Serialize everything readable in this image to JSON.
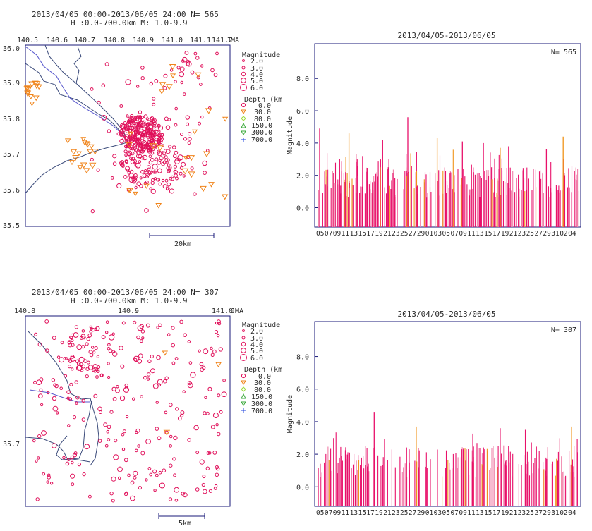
{
  "colors": {
    "axis": "#1a1a7a",
    "text": "#2a2a2a",
    "coast": "#3a4a7a",
    "river": "#5555cc",
    "shallow": "#e0105a",
    "mid": "#f0841a",
    "deep80": "#9adb3a",
    "deep150": "#3aa83a",
    "deep300": "#2244dd",
    "bar_pink": "#e8106a",
    "bar_light": "#f080a8",
    "bar_orange": "#f0941a"
  },
  "panels": [
    {
      "map": {
        "header_line1": "2013/04/05 00:00-2013/06/05 24:00   N=   565",
        "header_line2": "H :0.0-700.0km  M: 1.0-9.9",
        "lon_ticks": [
          "140.5",
          "140.6",
          "140.7",
          "140.8",
          "140.9",
          "141.0",
          "141.1",
          "141.2"
        ],
        "agency": "JMA",
        "lat_ticks": [
          "36.0",
          "35.9",
          "35.8",
          "35.7",
          "35.6",
          "35.5"
        ],
        "scale_label": "20km",
        "legend_mag_title": "Magnitude",
        "legend_mag": [
          "2.0",
          "3.0",
          "4.0",
          "5.0",
          "6.0"
        ],
        "legend_depth_title": "Depth (km",
        "legend_depth": [
          "0.0",
          "30.0",
          "80.0",
          "150.0",
          "300.0",
          "700.0"
        ]
      },
      "chart_data": {
        "type": "bar",
        "title": "2013/04/05-2013/06/05",
        "ylabel": "Magnitude",
        "count_label": "N=   565",
        "y_ticks": [
          "8.0",
          "6.0",
          "4.0",
          "2.0",
          "0.0"
        ],
        "ylim": [
          -1.2,
          9.8
        ],
        "x_tick_labels": [
          "05",
          "07",
          "09",
          "11",
          "13",
          "15",
          "17",
          "19",
          "21",
          "23",
          "25",
          "27",
          "29",
          "01",
          "03",
          "05",
          "07",
          "09",
          "11",
          "13",
          "15",
          "17",
          "19",
          "21",
          "23",
          "25",
          "27",
          "29",
          "31",
          "02",
          "04"
        ],
        "x": [
          "2013-04-05",
          "2013-04-12",
          "2013-04-20",
          "2013-04-26",
          "2013-05-03",
          "2013-05-09",
          "2013-05-14",
          "2013-05-18",
          "2013-05-20",
          "2013-05-29",
          "2013-06-02"
        ],
        "values": [
          4.9,
          4.6,
          4.2,
          5.6,
          4.3,
          4.1,
          4.0,
          3.7,
          3.8,
          3.6,
          4.4
        ]
      }
    },
    {
      "map": {
        "header_line1": "2013/04/05 00:00-2013/06/05 24:00   N=   307",
        "header_line2": "H :0.0-700.0km  M: 1.0-9.9",
        "lon_ticks": [
          "140.8",
          "140.9",
          "141.0"
        ],
        "agency": "JMA",
        "lat_ticks": [
          "35.7"
        ],
        "scale_label": "5km",
        "legend_mag_title": "Magnitude",
        "legend_mag": [
          "2.0",
          "3.0",
          "4.0",
          "5.0",
          "6.0"
        ],
        "legend_depth_title": "Depth (km",
        "legend_depth": [
          "0.0",
          "30.0",
          "80.0",
          "150.0",
          "300.0",
          "700.0"
        ]
      },
      "chart_data": {
        "type": "bar",
        "title": "2013/04/05-2013/06/05",
        "ylabel": "Magnitude",
        "count_label": "N=   307",
        "y_ticks": [
          "8.0",
          "6.0",
          "4.0",
          "2.0",
          "0.0"
        ],
        "ylim": [
          -1.2,
          9.8
        ],
        "x_tick_labels": [
          "05",
          "07",
          "09",
          "11",
          "13",
          "15",
          "17",
          "19",
          "21",
          "23",
          "25",
          "27",
          "29",
          "01",
          "03",
          "05",
          "07",
          "09",
          "11",
          "13",
          "15",
          "17",
          "19",
          "21",
          "23",
          "25",
          "27",
          "29",
          "31",
          "02",
          "04"
        ],
        "x": [
          "2013-04-18",
          "2013-04-28",
          "2013-05-18",
          "2013-05-24",
          "2013-06-04"
        ],
        "values": [
          4.6,
          3.7,
          3.6,
          3.5,
          3.7
        ]
      }
    }
  ]
}
